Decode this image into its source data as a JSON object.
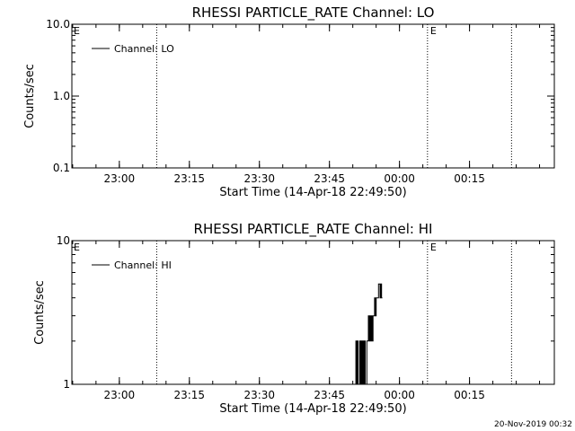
{
  "footer": {
    "timestamp": "20-Nov-2019 00:32"
  },
  "chart_data": [
    {
      "type": "line",
      "title": "RHESSI PARTICLE_RATE Channel: LO",
      "xlabel": "Start Time (14-Apr-18 22:49:50)",
      "ylabel": "Counts/sec",
      "yscale": "log",
      "ylim": [
        0.1,
        10.0
      ],
      "xlim": [
        "22:49:50",
        "00:33:10"
      ],
      "x_ticks": [
        "23:00",
        "23:15",
        "23:30",
        "23:45",
        "00:00",
        "00:15"
      ],
      "y_ticks": [
        "0.1",
        "1.0",
        "10.0"
      ],
      "legend": {
        "entries": [
          "Channel: LO"
        ],
        "position": "top-left"
      },
      "vertical_lines": [
        {
          "time": "23:08",
          "label": ""
        },
        {
          "time": "00:06",
          "label": "E"
        },
        {
          "time": "00:24",
          "label": ""
        }
      ],
      "left_flag": "E",
      "series": [
        {
          "name": "Channel: LO",
          "x": [],
          "y": []
        }
      ]
    },
    {
      "type": "line",
      "title": "RHESSI PARTICLE_RATE Channel: HI",
      "xlabel": "Start Time (14-Apr-18 22:49:50)",
      "ylabel": "Counts/sec",
      "yscale": "log",
      "ylim": [
        1,
        10
      ],
      "xlim": [
        "22:49:50",
        "00:33:10"
      ],
      "x_ticks": [
        "23:00",
        "23:15",
        "23:30",
        "23:45",
        "00:00",
        "00:15"
      ],
      "y_ticks": [
        "1",
        "10"
      ],
      "legend": {
        "entries": [
          "Channel: HI"
        ],
        "position": "top-left"
      },
      "vertical_lines": [
        {
          "time": "23:08",
          "label": ""
        },
        {
          "time": "00:06",
          "label": "E"
        },
        {
          "time": "00:24",
          "label": ""
        }
      ],
      "left_flag": "E",
      "series": [
        {
          "name": "Channel: HI",
          "x": [
            "23:50:30",
            "23:50:40",
            "23:50:50",
            "23:51:00",
            "23:51:10",
            "23:51:20",
            "23:51:30",
            "23:51:40",
            "23:51:50",
            "23:52:00",
            "23:52:10",
            "23:52:20",
            "23:52:30",
            "23:52:40",
            "23:52:50",
            "23:53:00",
            "23:53:10",
            "23:53:20",
            "23:53:30",
            "23:53:40",
            "23:53:50",
            "23:54:00",
            "23:54:10",
            "23:54:20",
            "23:54:30",
            "23:54:40",
            "23:54:50",
            "23:55:00",
            "23:55:10",
            "23:55:20",
            "23:55:30",
            "23:55:40",
            "23:55:50",
            "23:56:00",
            "23:56:10",
            "23:56:20"
          ],
          "y": [
            1,
            2,
            1,
            2,
            1,
            1,
            2,
            1,
            2,
            1,
            2,
            1,
            2,
            1,
            1,
            2,
            2,
            3,
            2,
            3,
            2,
            3,
            2,
            3,
            3,
            4,
            3,
            4,
            4,
            4,
            5,
            5,
            4,
            5,
            4,
            4
          ]
        }
      ]
    }
  ]
}
